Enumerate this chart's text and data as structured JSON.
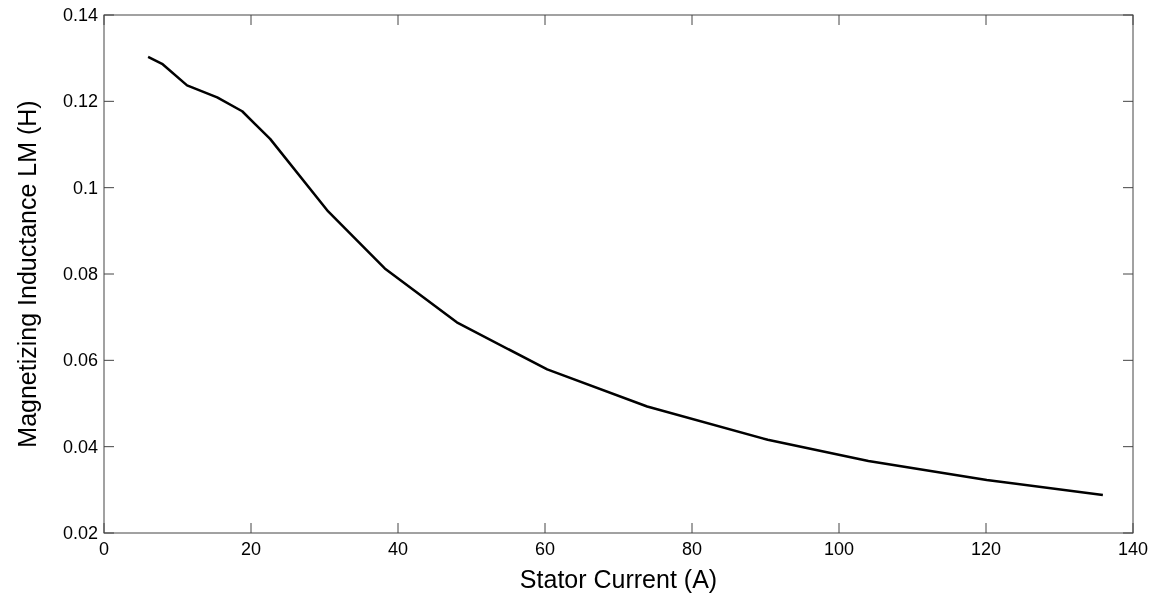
{
  "chart_data": {
    "type": "line",
    "xlabel": "Stator Current (A)",
    "ylabel": "Magnetizing Inductance LM (H)",
    "xlim": [
      0,
      140
    ],
    "xticks": [
      0,
      20,
      40,
      60,
      80,
      100,
      120,
      140
    ],
    "ylim": [
      0.02,
      0.14
    ],
    "yticks": [
      0.02,
      0.04,
      0.06,
      0.08,
      0.1,
      0.12,
      0.14
    ],
    "grid": false,
    "x": [
      6.0,
      7.9,
      11.3,
      15.4,
      18.8,
      22.6,
      30.5,
      38.2,
      48.0,
      60.3,
      73.9,
      90.3,
      104,
      120.1,
      135.9
    ],
    "series": [
      {
        "color": "#000000",
        "values": [
          0.1303,
          0.1287,
          0.1237,
          0.1209,
          0.1177,
          0.1113,
          0.0945,
          0.0813,
          0.0688,
          0.0579,
          0.0493,
          0.0416,
          0.0367,
          0.0323,
          0.0288
        ]
      }
    ]
  }
}
